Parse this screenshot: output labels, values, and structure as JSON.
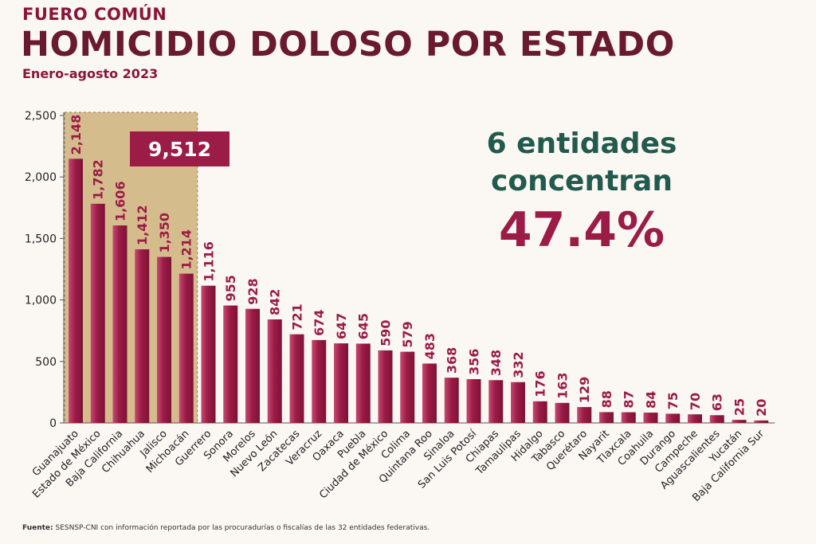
{
  "header": {
    "supertitle": "FUERO COMÚN",
    "title": "HOMICIDIO DOLOSO POR ESTADO",
    "subtitle": "Enero-agosto 2023"
  },
  "callout": {
    "line1": "6 entidades",
    "line2": "concentran",
    "percent": "47.4%"
  },
  "highlight": {
    "total_label": "9,512",
    "count": 6,
    "band_color": "#d5bc8d",
    "label_color": "#9b1c46"
  },
  "source": {
    "label": "Fuente:",
    "text": "SESNSP-CNI con información reportada por las procuradurías o fiscalías de las 32 entidades federativas."
  },
  "colors": {
    "bar": "#9b1c46",
    "bar_light": "#c44b72",
    "value_label": "#9b1c46",
    "axis_text": "#222222"
  },
  "chart_data": {
    "type": "bar",
    "categories": [
      "Guanajuato",
      "Estado de México",
      "Baja California",
      "Chihuahua",
      "Jalisco",
      "Michoacán",
      "Guerrero",
      "Sonora",
      "Morelos",
      "Nuevo León",
      "Zacatecas",
      "Veracruz",
      "Oaxaca",
      "Puebla",
      "Ciudad de México",
      "Colima",
      "Quintana Roo",
      "Sinaloa",
      "San Luis Potosí",
      "Chiapas",
      "Tamaulipas",
      "Hidalgo",
      "Tabasco",
      "Querétaro",
      "Nayarit",
      "Tlaxcala",
      "Coahuila",
      "Durango",
      "Campeche",
      "Aguascalientes",
      "Yucatán",
      "Baja California Sur"
    ],
    "values": [
      2148,
      1782,
      1606,
      1412,
      1350,
      1214,
      1116,
      955,
      928,
      842,
      721,
      674,
      647,
      645,
      590,
      579,
      483,
      368,
      356,
      348,
      332,
      176,
      163,
      129,
      88,
      87,
      84,
      75,
      70,
      63,
      25,
      20
    ],
    "value_labels": [
      "2,148",
      "1,782",
      "1,606",
      "1,412",
      "1,350",
      "1,214",
      "1,116",
      "955",
      "928",
      "842",
      "721",
      "674",
      "647",
      "645",
      "590",
      "579",
      "483",
      "368",
      "356",
      "348",
      "332",
      "176",
      "163",
      "129",
      "88",
      "87",
      "84",
      "75",
      "70",
      "63",
      "25",
      "20"
    ],
    "yticks": [
      0,
      500,
      1000,
      1500,
      2000,
      2500
    ],
    "ytick_labels": [
      "0",
      "500",
      "1,000",
      "1,500",
      "2,000",
      "2,500"
    ],
    "ylim": [
      0,
      2500
    ],
    "grid": false,
    "legend": "none"
  }
}
